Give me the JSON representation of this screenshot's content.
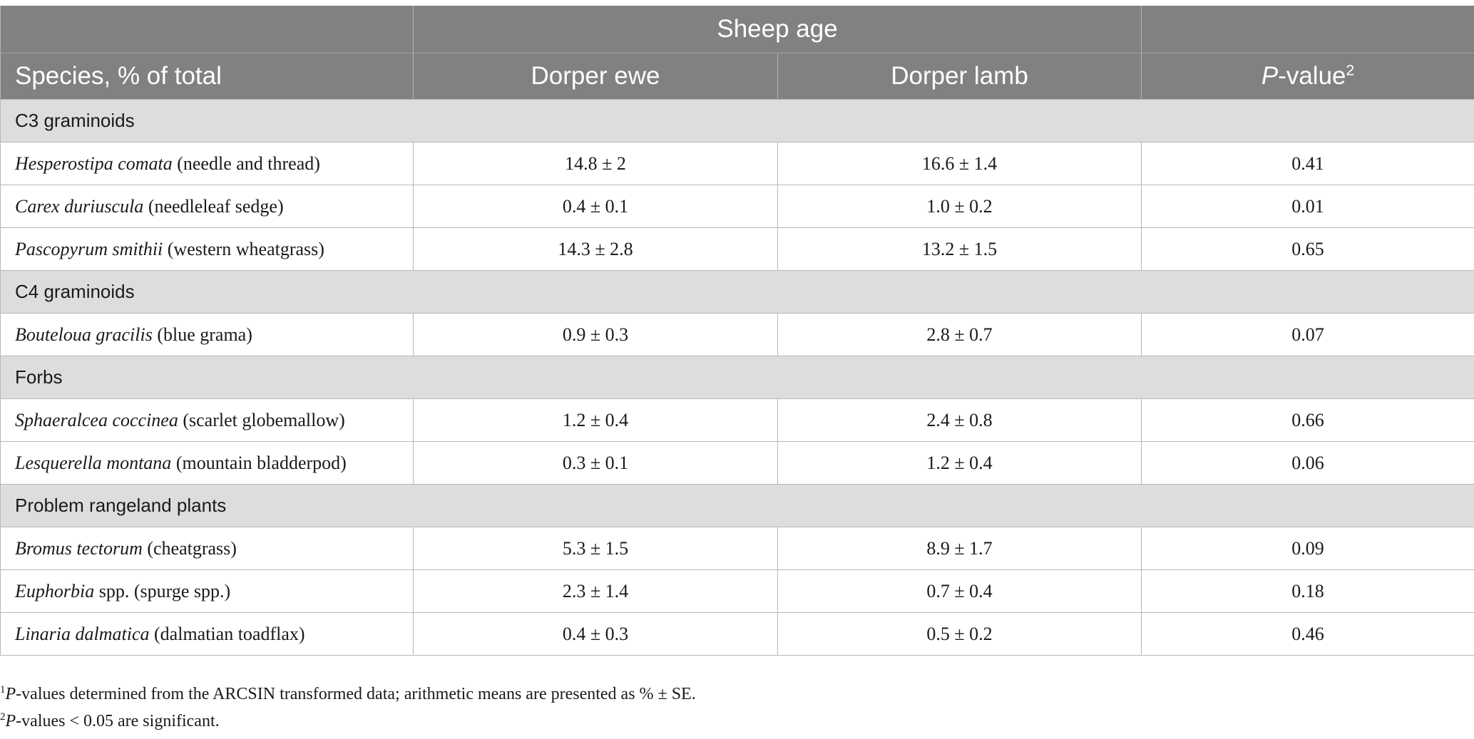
{
  "header": {
    "group_label": "Sheep age",
    "col_species": "Species, % of total",
    "col_ewe": "Dorper ewe",
    "col_lamb": "Dorper lamb",
    "col_p": "P",
    "col_p_suffix": "-value",
    "col_p_sup": "2"
  },
  "groups": [
    {
      "name": "C3 graminoids",
      "rows": [
        {
          "latin": "Hesperostipa comata",
          "common": " (needle and thread)",
          "ewe": "14.8 ± 2",
          "lamb": "16.6 ± 1.4",
          "p": "0.41"
        },
        {
          "latin": "Carex duriuscula",
          "common": " (needleleaf sedge)",
          "ewe": "0.4 ± 0.1",
          "lamb": "1.0 ± 0.2",
          "p": "0.01"
        },
        {
          "latin": "Pascopyrum smithii",
          "common": " (western wheatgrass)",
          "ewe": "14.3 ± 2.8",
          "lamb": "13.2 ± 1.5",
          "p": "0.65"
        }
      ]
    },
    {
      "name": "C4 graminoids",
      "rows": [
        {
          "latin": "Bouteloua gracilis",
          "common": " (blue grama)",
          "ewe": "0.9 ± 0.3",
          "lamb": "2.8 ± 0.7",
          "p": "0.07"
        }
      ]
    },
    {
      "name": "Forbs",
      "rows": [
        {
          "latin": "Sphaeralcea coccinea",
          "common": " (scarlet globemallow)",
          "ewe": "1.2 ± 0.4",
          "lamb": "2.4 ± 0.8",
          "p": "0.66"
        },
        {
          "latin": "Lesquerella montana",
          "common": " (mountain bladderpod)",
          "ewe": "0.3 ± 0.1",
          "lamb": "1.2 ± 0.4",
          "p": "0.06"
        }
      ]
    },
    {
      "name": "Problem rangeland plants",
      "rows": [
        {
          "latin": "Bromus tectorum",
          "common": " (cheatgrass)",
          "ewe": "5.3 ± 1.5",
          "lamb": "8.9 ± 1.7",
          "p": "0.09"
        },
        {
          "latin": "Euphorbia",
          "common": " spp. (spurge spp.)",
          "ewe": "2.3 ± 1.4",
          "lamb": "0.7 ± 0.4",
          "p": "0.18"
        },
        {
          "latin": "Linaria dalmatica",
          "common": " (dalmatian toadflax)",
          "ewe": "0.4 ± 0.3",
          "lamb": "0.5 ± 0.2",
          "p": "0.46"
        }
      ]
    }
  ],
  "footnotes": [
    {
      "mark": "1",
      "italic": "P",
      "text": "-values determined from the ARCSIN transformed data; arithmetic means are presented as % ± SE."
    },
    {
      "mark": "2",
      "italic": "P",
      "text": "-values < 0.05 are significant."
    }
  ]
}
